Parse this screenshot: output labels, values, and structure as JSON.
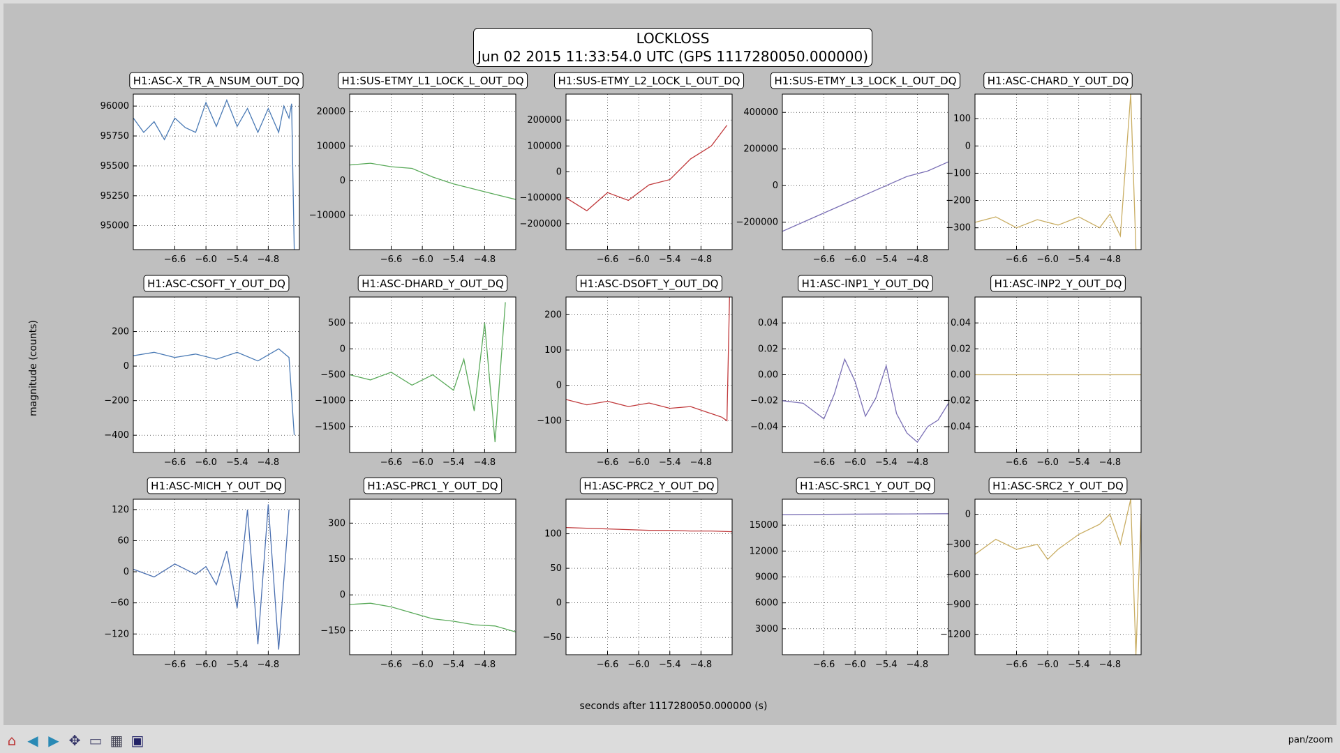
{
  "title_line1": "LOCKLOSS",
  "title_line2": "Jun 02 2015 11:33:54.0 UTC (GPS 1117280050.000000)",
  "ylabel": "magnitude (counts)",
  "xlabel": "seconds after 1117280050.000000 (s)",
  "status": "pan/zoom",
  "toolbar": [
    "home-icon",
    "back-icon",
    "forward-icon",
    "pan-icon",
    "zoom-icon",
    "subplots-icon",
    "save-icon"
  ],
  "chart_data": [
    {
      "type": "line",
      "title": "H1:ASC-X_TR_A_NSUM_OUT_DQ",
      "color": "#4a7ab5",
      "xlim": [
        -7.4,
        -4.2
      ],
      "ylim": [
        94800,
        96100
      ],
      "yticks": [
        {
          "v": 96000,
          "l": "96000"
        },
        {
          "v": 95750,
          "l": "95750"
        },
        {
          "v": 95500,
          "l": "95500"
        },
        {
          "v": 95250,
          "l": "95250"
        },
        {
          "v": 95000,
          "l": "95000"
        }
      ],
      "x": [
        -7.4,
        -7.2,
        -7.0,
        -6.8,
        -6.6,
        -6.4,
        -6.2,
        -6.0,
        -5.8,
        -5.6,
        -5.4,
        -5.2,
        -5.0,
        -4.8,
        -4.6,
        -4.5,
        -4.4,
        -4.35,
        -4.3
      ],
      "y": [
        95900,
        95780,
        95870,
        95720,
        95900,
        95820,
        95780,
        96030,
        95830,
        96050,
        95830,
        95980,
        95780,
        95980,
        95780,
        96000,
        95900,
        96020,
        94800
      ]
    },
    {
      "type": "line",
      "title": "H1:SUS-ETMY_L1_LOCK_L_OUT_DQ",
      "color": "#5aaa5a",
      "xlim": [
        -7.4,
        -4.2
      ],
      "ylim": [
        -20000,
        25000
      ],
      "yticks": [
        {
          "v": 20000,
          "l": "20000"
        },
        {
          "v": 10000,
          "l": "10000"
        },
        {
          "v": 0,
          "l": "0"
        },
        {
          "v": -10000,
          "l": "−10000"
        }
      ],
      "x": [
        -7.4,
        -7.0,
        -6.6,
        -6.2,
        -5.8,
        -5.4,
        -5.0,
        -4.6,
        -4.2
      ],
      "y": [
        4500,
        5000,
        4000,
        3500,
        1000,
        -1000,
        -2500,
        -4000,
        -5500
      ]
    },
    {
      "type": "line",
      "title": "H1:SUS-ETMY_L2_LOCK_L_OUT_DQ",
      "color": "#c0393b",
      "xlim": [
        -7.4,
        -4.2
      ],
      "ylim": [
        -300000,
        300000
      ],
      "yticks": [
        {
          "v": 200000,
          "l": "200000"
        },
        {
          "v": 100000,
          "l": "100000"
        },
        {
          "v": 0,
          "l": "0"
        },
        {
          "v": -100000,
          "l": "−100000"
        },
        {
          "v": -200000,
          "l": "−200000"
        }
      ],
      "x": [
        -7.4,
        -7.0,
        -6.6,
        -6.2,
        -5.8,
        -5.4,
        -5.0,
        -4.6,
        -4.3
      ],
      "y": [
        -100000,
        -150000,
        -80000,
        -110000,
        -50000,
        -30000,
        50000,
        100000,
        180000
      ]
    },
    {
      "type": "line",
      "title": "H1:SUS-ETMY_L3_LOCK_L_OUT_DQ",
      "color": "#7a6fb5",
      "xlim": [
        -7.4,
        -4.2
      ],
      "ylim": [
        -350000,
        500000
      ],
      "yticks": [
        {
          "v": 400000,
          "l": "400000"
        },
        {
          "v": 200000,
          "l": "200000"
        },
        {
          "v": 0,
          "l": "0"
        },
        {
          "v": -200000,
          "l": "−200000"
        }
      ],
      "x": [
        -7.4,
        -7.0,
        -6.6,
        -6.2,
        -5.8,
        -5.4,
        -5.0,
        -4.6,
        -4.2
      ],
      "y": [
        -250000,
        -200000,
        -150000,
        -100000,
        -50000,
        0,
        50000,
        80000,
        130000
      ]
    },
    {
      "type": "line",
      "title": "H1:ASC-CHARD_Y_OUT_DQ",
      "color": "#c9ad62",
      "xlim": [
        -7.4,
        -4.2
      ],
      "ylim": [
        -380,
        190
      ],
      "yticks": [
        {
          "v": 100,
          "l": "100"
        },
        {
          "v": 0,
          "l": "0"
        },
        {
          "v": -100,
          "l": "−100"
        },
        {
          "v": -200,
          "l": "−200"
        },
        {
          "v": -300,
          "l": "−300"
        }
      ],
      "x": [
        -7.4,
        -7.0,
        -6.6,
        -6.2,
        -5.8,
        -5.4,
        -5.0,
        -4.8,
        -4.6,
        -4.4,
        -4.3
      ],
      "y": [
        -280,
        -260,
        -300,
        -270,
        -290,
        -260,
        -300,
        -250,
        -330,
        190,
        -380
      ]
    },
    {
      "type": "line",
      "title": "H1:ASC-CSOFT_Y_OUT_DQ",
      "color": "#4a7ab5",
      "xlim": [
        -7.4,
        -4.2
      ],
      "ylim": [
        -500,
        400
      ],
      "yticks": [
        {
          "v": 200,
          "l": "200"
        },
        {
          "v": 0,
          "l": "0"
        },
        {
          "v": -200,
          "l": "−200"
        },
        {
          "v": -400,
          "l": "−400"
        }
      ],
      "x": [
        -7.4,
        -7.0,
        -6.6,
        -6.2,
        -5.8,
        -5.4,
        -5.0,
        -4.6,
        -4.4,
        -4.3
      ],
      "y": [
        60,
        80,
        50,
        70,
        40,
        80,
        30,
        100,
        50,
        -400
      ]
    },
    {
      "type": "line",
      "title": "H1:ASC-DHARD_Y_OUT_DQ",
      "color": "#5aaa5a",
      "xlim": [
        -7.4,
        -4.2
      ],
      "ylim": [
        -2000,
        1000
      ],
      "yticks": [
        {
          "v": 500,
          "l": "500"
        },
        {
          "v": 0,
          "l": "0"
        },
        {
          "v": -500,
          "l": "−500"
        },
        {
          "v": -1000,
          "l": "−1000"
        },
        {
          "v": -1500,
          "l": "−1500"
        }
      ],
      "x": [
        -7.4,
        -7.0,
        -6.6,
        -6.2,
        -5.8,
        -5.4,
        -5.2,
        -5.0,
        -4.8,
        -4.6,
        -4.4
      ],
      "y": [
        -500,
        -600,
        -450,
        -700,
        -500,
        -800,
        -200,
        -1200,
        500,
        -1800,
        900
      ]
    },
    {
      "type": "line",
      "title": "H1:ASC-DSOFT_Y_OUT_DQ",
      "color": "#c0393b",
      "xlim": [
        -7.4,
        -4.2
      ],
      "ylim": [
        -190,
        250
      ],
      "yticks": [
        {
          "v": 200,
          "l": "200"
        },
        {
          "v": 100,
          "l": "100"
        },
        {
          "v": 0,
          "l": "0"
        },
        {
          "v": -100,
          "l": "−100"
        }
      ],
      "x": [
        -7.4,
        -7.0,
        -6.6,
        -6.2,
        -5.8,
        -5.4,
        -5.0,
        -4.6,
        -4.4,
        -4.3,
        -4.25
      ],
      "y": [
        -40,
        -55,
        -45,
        -60,
        -50,
        -65,
        -60,
        -80,
        -90,
        -100,
        250
      ]
    },
    {
      "type": "line",
      "title": "H1:ASC-INP1_Y_OUT_DQ",
      "color": "#7a6fb5",
      "xlim": [
        -7.4,
        -4.2
      ],
      "ylim": [
        -0.06,
        0.06
      ],
      "yticks": [
        {
          "v": 0.04,
          "l": "0.04"
        },
        {
          "v": 0.02,
          "l": "0.02"
        },
        {
          "v": 0,
          "l": "0.00"
        },
        {
          "v": -0.02,
          "l": "−0.02"
        },
        {
          "v": -0.04,
          "l": "−0.04"
        }
      ],
      "x": [
        -7.4,
        -7.0,
        -6.8,
        -6.6,
        -6.4,
        -6.2,
        -6.0,
        -5.8,
        -5.6,
        -5.4,
        -5.2,
        -5.0,
        -4.8,
        -4.6,
        -4.4,
        -4.2
      ],
      "y": [
        -0.02,
        -0.022,
        -0.028,
        -0.034,
        -0.015,
        0.012,
        -0.005,
        -0.032,
        -0.018,
        0.007,
        -0.03,
        -0.045,
        -0.052,
        -0.04,
        -0.035,
        -0.022
      ]
    },
    {
      "type": "line",
      "title": "H1:ASC-INP2_Y_OUT_DQ",
      "color": "#c9ad62",
      "xlim": [
        -7.4,
        -4.2
      ],
      "ylim": [
        -0.06,
        0.06
      ],
      "yticks": [
        {
          "v": 0.04,
          "l": "0.04"
        },
        {
          "v": 0.02,
          "l": "0.02"
        },
        {
          "v": 0,
          "l": "0.00"
        },
        {
          "v": -0.02,
          "l": "−0.02"
        },
        {
          "v": -0.04,
          "l": "−0.04"
        }
      ],
      "x": [
        -7.4,
        -4.2
      ],
      "y": [
        0,
        0
      ]
    },
    {
      "type": "line",
      "title": "H1:ASC-MICH_Y_OUT_DQ",
      "color": "#4a6fb0",
      "xlim": [
        -7.4,
        -4.2
      ],
      "ylim": [
        -160,
        140
      ],
      "yticks": [
        {
          "v": 120,
          "l": "120"
        },
        {
          "v": 60,
          "l": "60"
        },
        {
          "v": 0,
          "l": "0"
        },
        {
          "v": -60,
          "l": "−60"
        },
        {
          "v": -120,
          "l": "−120"
        }
      ],
      "x": [
        -7.4,
        -7.0,
        -6.6,
        -6.2,
        -6.0,
        -5.8,
        -5.6,
        -5.4,
        -5.2,
        -5.0,
        -4.8,
        -4.6,
        -4.4
      ],
      "y": [
        5,
        -10,
        15,
        -5,
        10,
        -25,
        40,
        -70,
        120,
        -140,
        130,
        -150,
        120
      ]
    },
    {
      "type": "line",
      "title": "H1:ASC-PRC1_Y_OUT_DQ",
      "color": "#5aaa5a",
      "xlim": [
        -7.4,
        -4.2
      ],
      "ylim": [
        -250,
        400
      ],
      "yticks": [
        {
          "v": 300,
          "l": "300"
        },
        {
          "v": 150,
          "l": "150"
        },
        {
          "v": 0,
          "l": "0"
        },
        {
          "v": -150,
          "l": "−150"
        }
      ],
      "x": [
        -7.4,
        -7.0,
        -6.6,
        -6.2,
        -5.8,
        -5.4,
        -5.0,
        -4.6,
        -4.2
      ],
      "y": [
        -40,
        -35,
        -50,
        -75,
        -100,
        -110,
        -125,
        -130,
        -155
      ]
    },
    {
      "type": "line",
      "title": "H1:ASC-PRC2_Y_OUT_DQ",
      "color": "#c0393b",
      "xlim": [
        -7.4,
        -4.2
      ],
      "ylim": [
        -75,
        150
      ],
      "yticks": [
        {
          "v": 100,
          "l": "100"
        },
        {
          "v": 50,
          "l": "50"
        },
        {
          "v": 0,
          "l": "0"
        },
        {
          "v": -50,
          "l": "−50"
        }
      ],
      "x": [
        -7.4,
        -7.0,
        -6.6,
        -6.2,
        -5.8,
        -5.4,
        -5.0,
        -4.6,
        -4.2
      ],
      "y": [
        109,
        108,
        107,
        106,
        105,
        105,
        104,
        104,
        103
      ]
    },
    {
      "type": "line",
      "title": "H1:ASC-SRC1_Y_OUT_DQ",
      "color": "#7a6fb5",
      "xlim": [
        -7.4,
        -4.2
      ],
      "ylim": [
        0,
        18000
      ],
      "yticks": [
        {
          "v": 15000,
          "l": "15000"
        },
        {
          "v": 12000,
          "l": "12000"
        },
        {
          "v": 9000,
          "l": "9000"
        },
        {
          "v": 6000,
          "l": "6000"
        },
        {
          "v": 3000,
          "l": "3000"
        }
      ],
      "x": [
        -7.4,
        -6.6,
        -5.8,
        -5.0,
        -4.2
      ],
      "y": [
        16200,
        16250,
        16280,
        16300,
        16320
      ]
    },
    {
      "type": "line",
      "title": "H1:ASC-SRC2_Y_OUT_DQ",
      "color": "#c9ad62",
      "xlim": [
        -7.4,
        -4.2
      ],
      "ylim": [
        -1400,
        150
      ],
      "yticks": [
        {
          "v": 0,
          "l": "0"
        },
        {
          "v": -300,
          "l": "−300"
        },
        {
          "v": -600,
          "l": "−600"
        },
        {
          "v": -900,
          "l": "−900"
        },
        {
          "v": -1200,
          "l": "−1200"
        }
      ],
      "x": [
        -7.4,
        -7.0,
        -6.6,
        -6.2,
        -6.0,
        -5.8,
        -5.4,
        -5.0,
        -4.8,
        -4.6,
        -4.4,
        -4.3,
        -4.2
      ],
      "y": [
        -400,
        -250,
        -350,
        -300,
        -450,
        -350,
        -200,
        -100,
        0,
        -300,
        150,
        -1400,
        0
      ]
    }
  ],
  "xticks": [
    {
      "v": -6.6,
      "l": "−6.6"
    },
    {
      "v": -6.0,
      "l": "−6.0"
    },
    {
      "v": -5.4,
      "l": "−5.4"
    },
    {
      "v": -4.8,
      "l": "−4.8"
    }
  ]
}
